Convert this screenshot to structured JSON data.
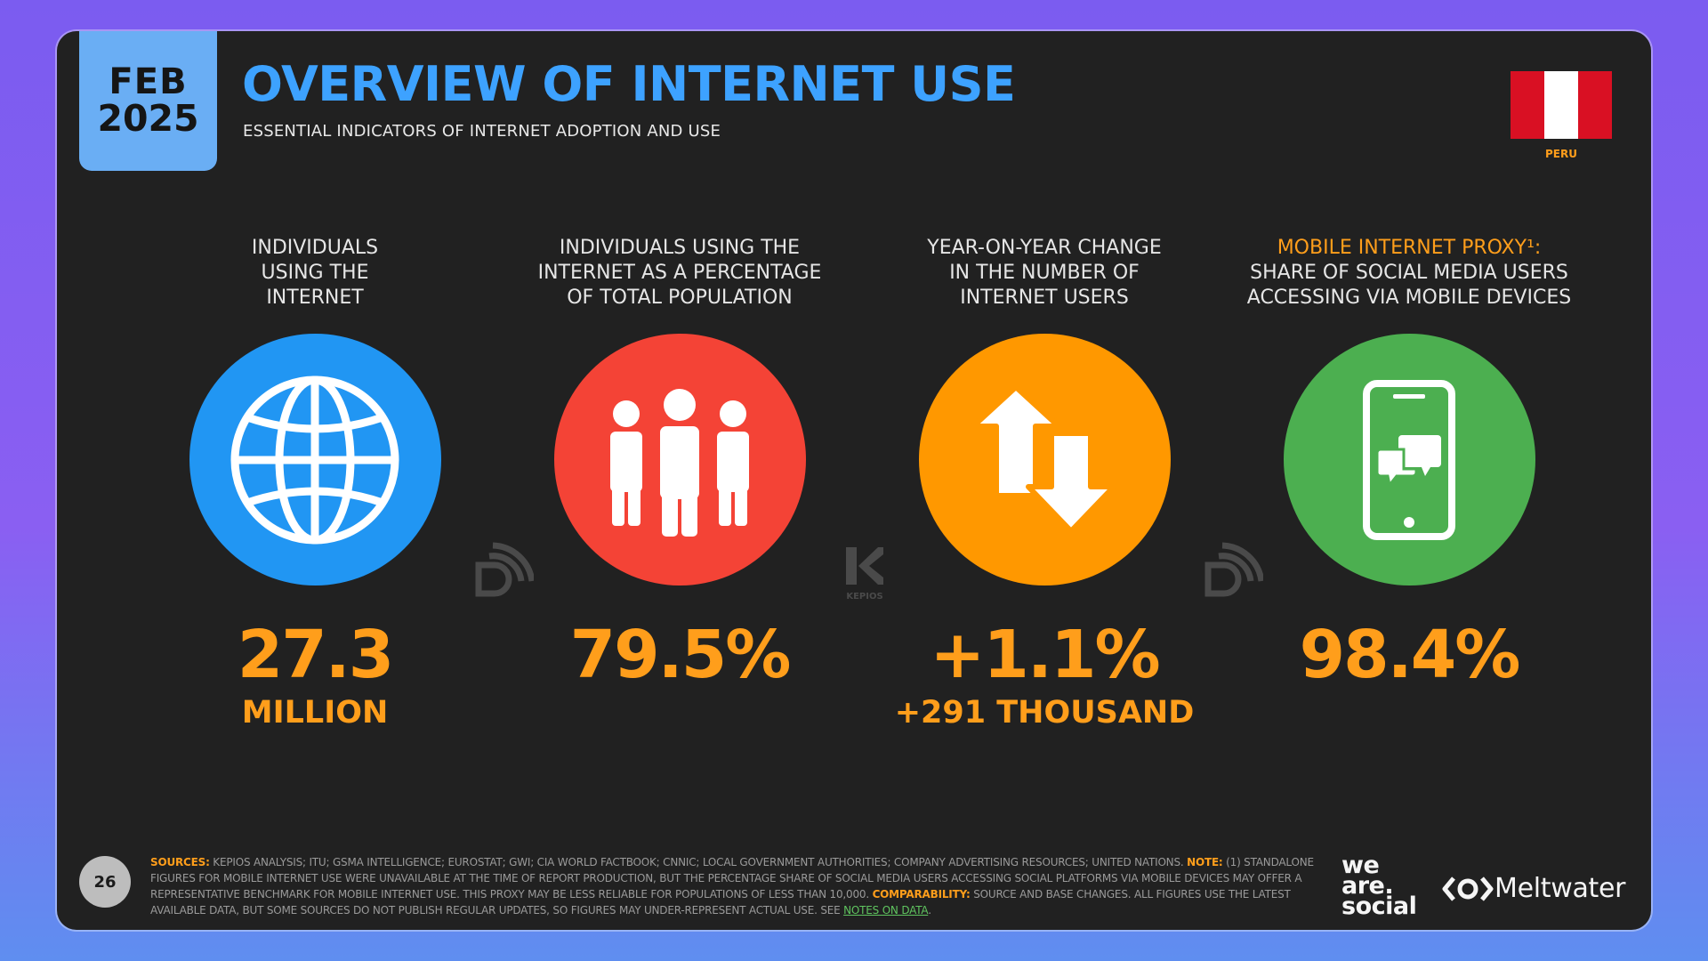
{
  "header": {
    "month": "FEB",
    "year": "2025",
    "title": "OVERVIEW OF INTERNET USE",
    "subtitle": "ESSENTIAL INDICATORS OF INTERNET ADOPTION AND USE",
    "country": "PERU"
  },
  "colors": {
    "accent": "#ff9e1b",
    "title": "#3da2ff",
    "date_tab": "#6aaef4",
    "card_bg": "#212121"
  },
  "stats": [
    {
      "label": "INDIVIDUALS\nUSING THE\nINTERNET",
      "icon": "globe-icon",
      "color": "#2196f3",
      "value": "27.3",
      "sub": "MILLION"
    },
    {
      "label": "INDIVIDUALS USING THE\nINTERNET AS A PERCENTAGE\nOF TOTAL POPULATION",
      "icon": "people-icon",
      "color": "#f44336",
      "value": "79.5%",
      "sub": ""
    },
    {
      "label": "YEAR-ON-YEAR CHANGE\nIN THE NUMBER OF\nINTERNET USERS",
      "icon": "up-down-arrows-icon",
      "color": "#ff9800",
      "value": "+1.1%",
      "sub": "+291 THOUSAND"
    },
    {
      "label_highlight": "MOBILE INTERNET PROXY¹:",
      "label": "\nSHARE OF SOCIAL MEDIA USERS\nACCESSING VIA MOBILE DEVICES",
      "icon": "mobile-chat-icon",
      "color": "#4caf50",
      "value": "98.4%",
      "sub": ""
    }
  ],
  "watermarks": {
    "kepios": "KEPIOS"
  },
  "footer": {
    "page_number": "26",
    "sources_label": "SOURCES:",
    "sources_text": " KEPIOS ANALYSIS; ITU; GSMA INTELLIGENCE; EUROSTAT; GWI; CIA WORLD FACTBOOK; CNNIC; LOCAL GOVERNMENT AUTHORITIES; COMPANY ADVERTISING RESOURCES; UNITED NATIONS. ",
    "note_label": "NOTE:",
    "note_text": " (1) STANDALONE FIGURES FOR MOBILE INTERNET USE WERE UNAVAILABLE AT THE TIME OF REPORT PRODUCTION, BUT THE PERCENTAGE SHARE OF SOCIAL MEDIA USERS ACCESSING SOCIAL PLATFORMS VIA MOBILE DEVICES MAY OFFER A REPRESENTATIVE BENCHMARK FOR MOBILE INTERNET USE. THIS PROXY MAY BE LESS RELIABLE FOR POPULATIONS OF LESS THAN 10,000. ",
    "comparability_label": "COMPARABILITY:",
    "comparability_text": " SOURCE AND BASE CHANGES. ALL FIGURES USE THE LATEST AVAILABLE DATA, BUT SOME SOURCES DO NOT PUBLISH REGULAR UPDATES, SO FIGURES MAY UNDER-REPRESENT ACTUAL USE. SEE ",
    "notes_link": "NOTES ON DATA",
    "notes_end": ".",
    "brand1_line1": "we",
    "brand1_line2": "are.",
    "brand1_line3": "social",
    "brand2": "Meltwater"
  }
}
